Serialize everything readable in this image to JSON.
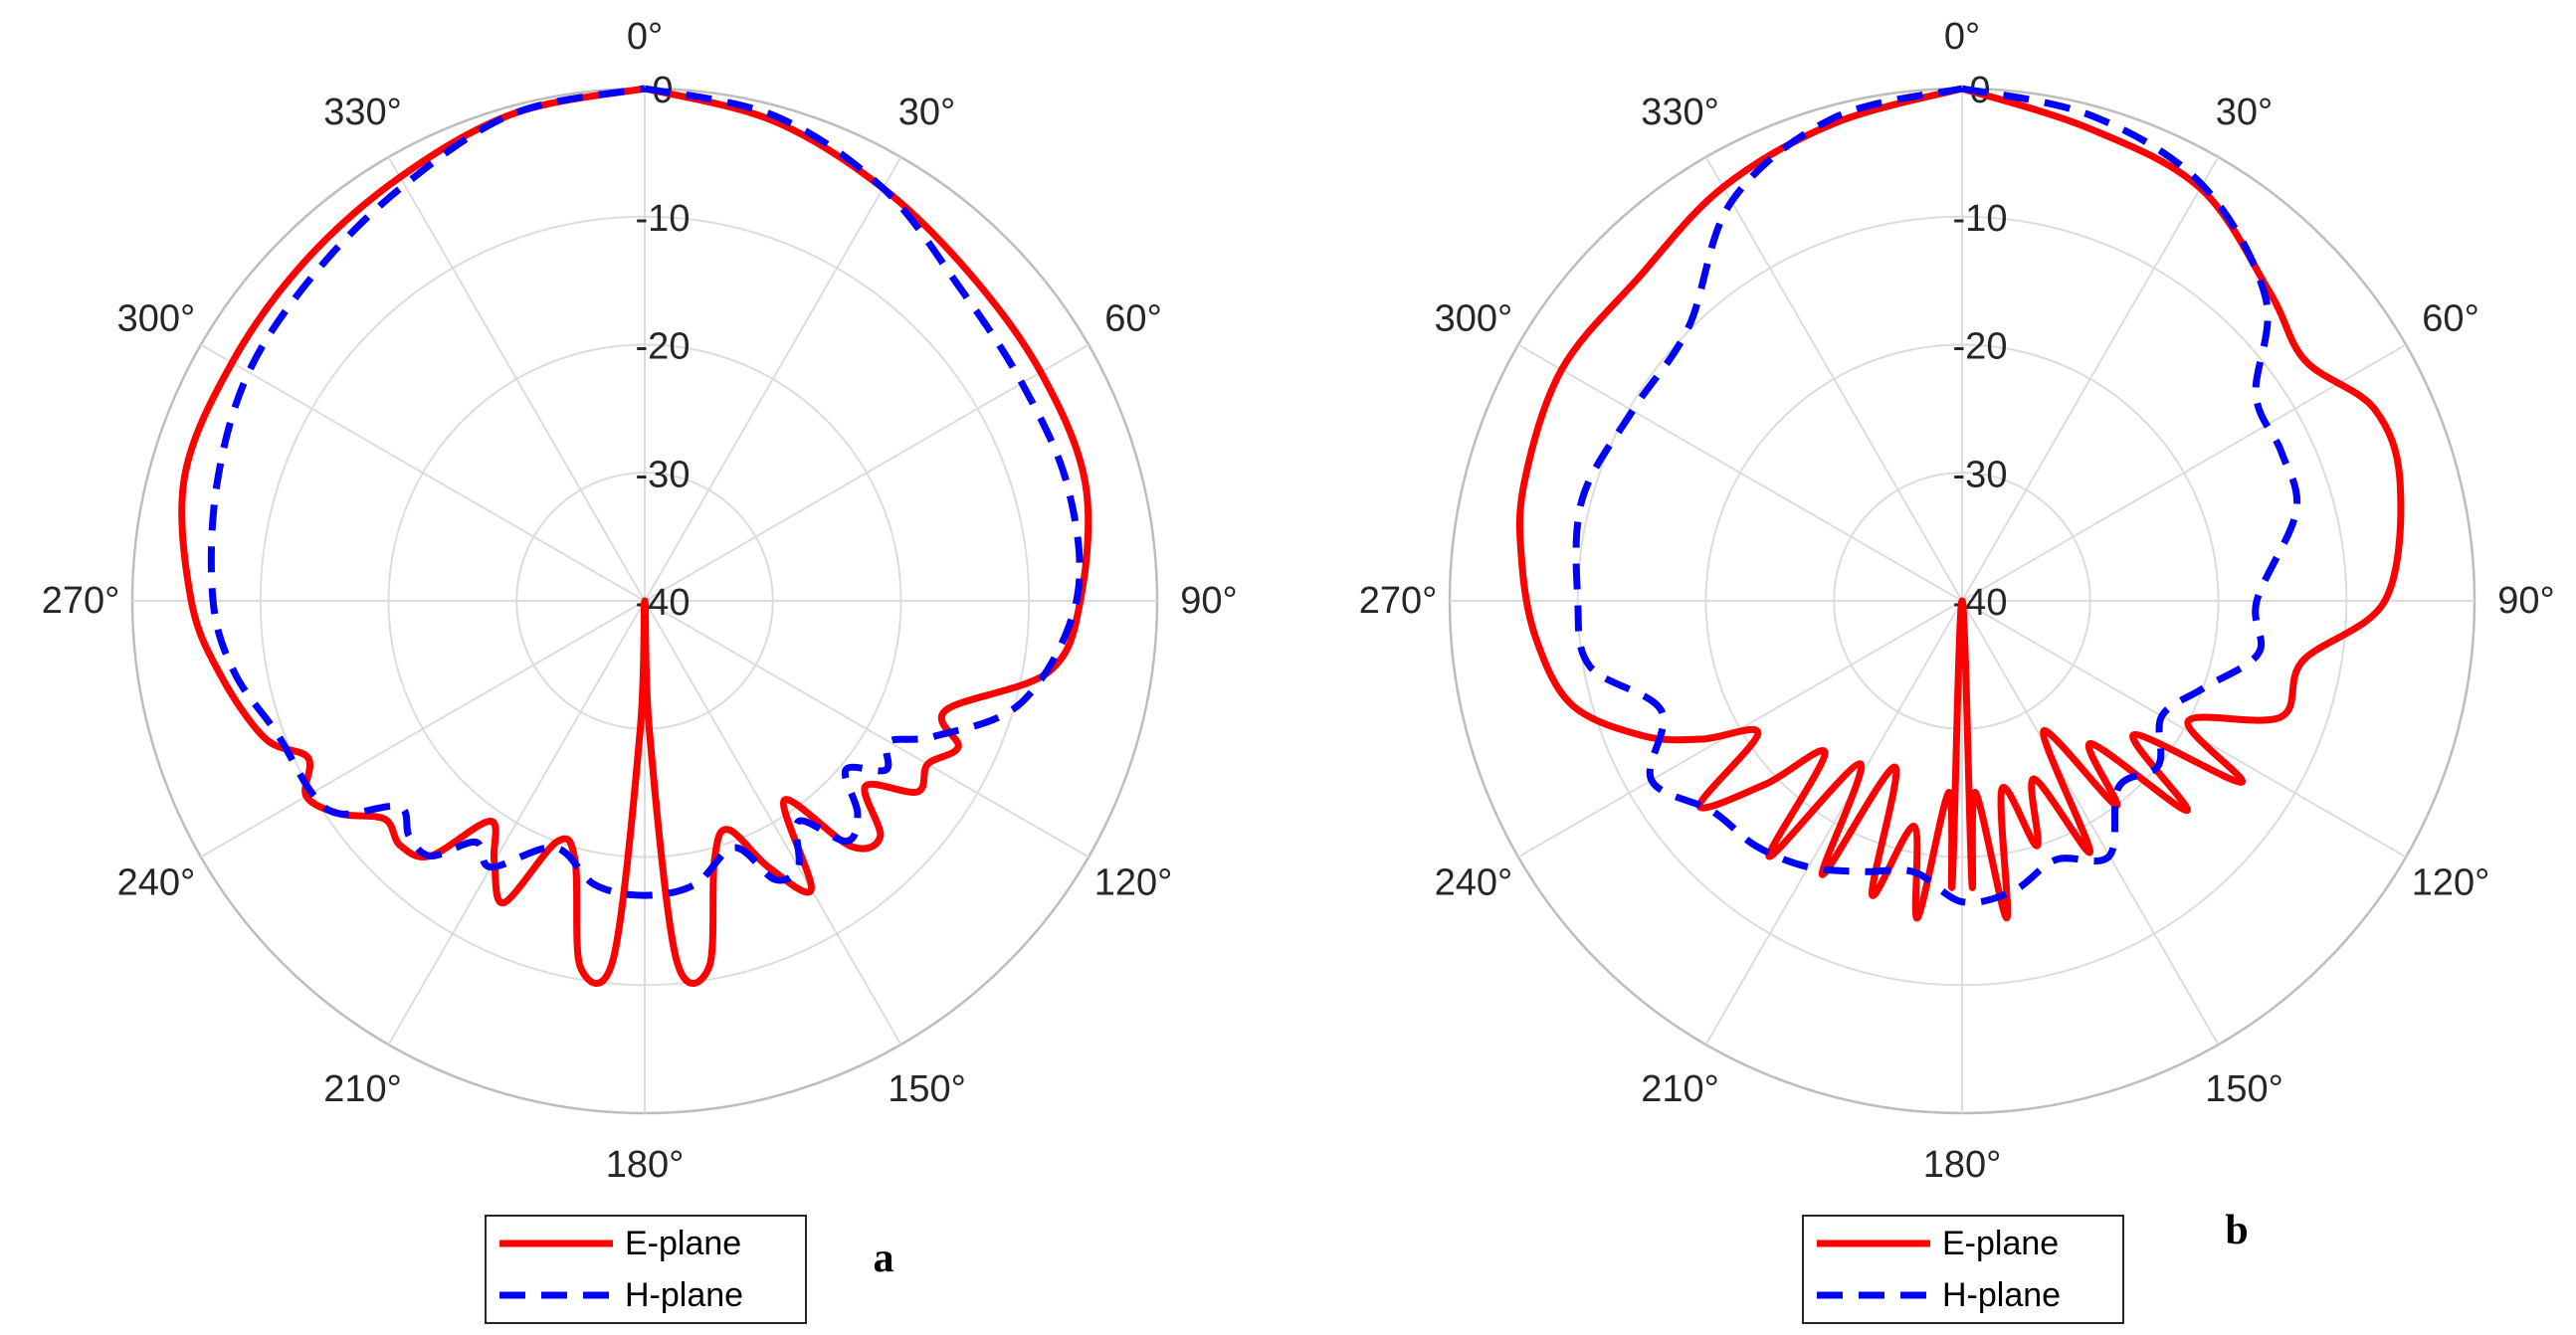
{
  "chart_data": [
    {
      "type": "polar-line",
      "panel_label": "a",
      "angle_ticks": [
        "0°",
        "30°",
        "60°",
        "90°",
        "120°",
        "150°",
        "180°",
        "210°",
        "240°",
        "270°",
        "300°",
        "330°"
      ],
      "radial_ticks": [
        "-40",
        "-30",
        "-20",
        "-10",
        "0"
      ],
      "rlim": [
        -40,
        0
      ],
      "theta_zero": "top",
      "theta_direction": "clockwise",
      "grid": true,
      "legend_position": "bottom",
      "series": [
        {
          "name": "E-plane",
          "color": "#ff0000",
          "style": "solid",
          "theta": [
            0,
            15,
            30,
            45,
            60,
            75,
            90,
            100,
            110,
            115,
            120,
            125,
            130,
            135,
            140,
            145,
            150,
            155,
            160,
            165,
            170,
            175,
            178,
            180,
            182,
            185,
            190,
            195,
            200,
            205,
            210,
            215,
            220,
            225,
            230,
            235,
            240,
            245,
            250,
            260,
            270,
            285,
            300,
            315,
            330,
            345,
            360
          ],
          "values": [
            0,
            -1.2,
            -2.8,
            -4,
            -4.3,
            -4.4,
            -6,
            -8,
            -15,
            -13,
            -14.5,
            -14,
            -17.5,
            -14,
            -15,
            -21,
            -14,
            -17,
            -21,
            -19,
            -11,
            -12,
            -30,
            -40,
            -30,
            -12,
            -11,
            -19,
            -20,
            -14,
            -16.5,
            -19,
            -14,
            -13,
            -13.5,
            -11,
            -9.5,
            -11,
            -8.5,
            -6.4,
            -4.6,
            -2.8,
            -2.8,
            -2.5,
            -1.8,
            -0.6,
            0
          ]
        },
        {
          "name": "H-plane",
          "color": "#0000ff",
          "style": "dashed",
          "theta": [
            0,
            15,
            30,
            45,
            60,
            75,
            90,
            105,
            115,
            120,
            125,
            130,
            135,
            140,
            145,
            150,
            155,
            160,
            170,
            180,
            190,
            200,
            210,
            215,
            220,
            225,
            230,
            235,
            240,
            250,
            260,
            270,
            285,
            300,
            315,
            330,
            345,
            360
          ],
          "values": [
            0,
            -0.8,
            -2.8,
            -5.3,
            -6,
            -5.8,
            -6.3,
            -9.5,
            -15,
            -18,
            -17,
            -19.5,
            -16.5,
            -15.5,
            -19,
            -16,
            -16,
            -19.5,
            -17.5,
            -17,
            -17.5,
            -19.5,
            -16,
            -17,
            -14,
            -14,
            -15,
            -11,
            -10,
            -9.5,
            -7.5,
            -6.3,
            -5.4,
            -4.3,
            -3.7,
            -2.5,
            -0.6,
            0
          ]
        }
      ]
    },
    {
      "type": "polar-line",
      "panel_label": "b",
      "angle_ticks": [
        "0°",
        "30°",
        "60°",
        "90°",
        "120°",
        "150°",
        "180°",
        "210°",
        "240°",
        "270°",
        "300°",
        "330°"
      ],
      "radial_ticks": [
        "-40",
        "-30",
        "-20",
        "-10",
        "0"
      ],
      "rlim": [
        -40,
        0
      ],
      "theta_zero": "top",
      "theta_direction": "clockwise",
      "grid": true,
      "legend_position": "bottom",
      "series": [
        {
          "name": "E-plane",
          "color": "#ff0000",
          "style": "solid",
          "theta": [
            0,
            15,
            30,
            45,
            55,
            65,
            75,
            90,
            100,
            110,
            118,
            123,
            128,
            133,
            138,
            143,
            148,
            153,
            158,
            163,
            168,
            172,
            176,
            178,
            180,
            182,
            184,
            188,
            192,
            197,
            202,
            207,
            212,
            217,
            222,
            227,
            232,
            237,
            242,
            247,
            255,
            265,
            275,
            285,
            300,
            315,
            330,
            345,
            360
          ],
          "values": [
            0,
            -1.8,
            -2.8,
            -6,
            -7.3,
            -4.5,
            -4.6,
            -7,
            -13,
            -13.5,
            -20,
            -14,
            -23,
            -16,
            -25,
            -20,
            -28,
            -18,
            -25,
            -20,
            -25,
            -15,
            -25,
            -18,
            -40,
            -18,
            -25,
            -15,
            -22,
            -16,
            -26,
            -16,
            -25,
            -15,
            -24,
            -19,
            -14,
            -21,
            -17,
            -13,
            -8.5,
            -6.6,
            -5.5,
            -4.6,
            -3.9,
            -4.3,
            -2.7,
            -1.4,
            0
          ]
        },
        {
          "name": "H-plane",
          "color": "#0000ff",
          "style": "dashed",
          "theta": [
            0,
            15,
            30,
            45,
            55,
            65,
            75,
            90,
            100,
            110,
            120,
            130,
            140,
            150,
            160,
            170,
            180,
            190,
            200,
            210,
            220,
            230,
            240,
            250,
            260,
            270,
            285,
            300,
            315,
            330,
            345,
            360
          ],
          "values": [
            0,
            -0.8,
            -2.5,
            -6.5,
            -12,
            -12.5,
            -13,
            -17,
            -16.5,
            -20,
            -22,
            -20,
            -21,
            -17,
            -18.5,
            -17,
            -16.5,
            -18.5,
            -17.5,
            -16,
            -15,
            -14.5,
            -12,
            -15,
            -10.5,
            -10,
            -9.3,
            -10.3,
            -9.8,
            -4,
            -1,
            0
          ]
        }
      ]
    }
  ]
}
